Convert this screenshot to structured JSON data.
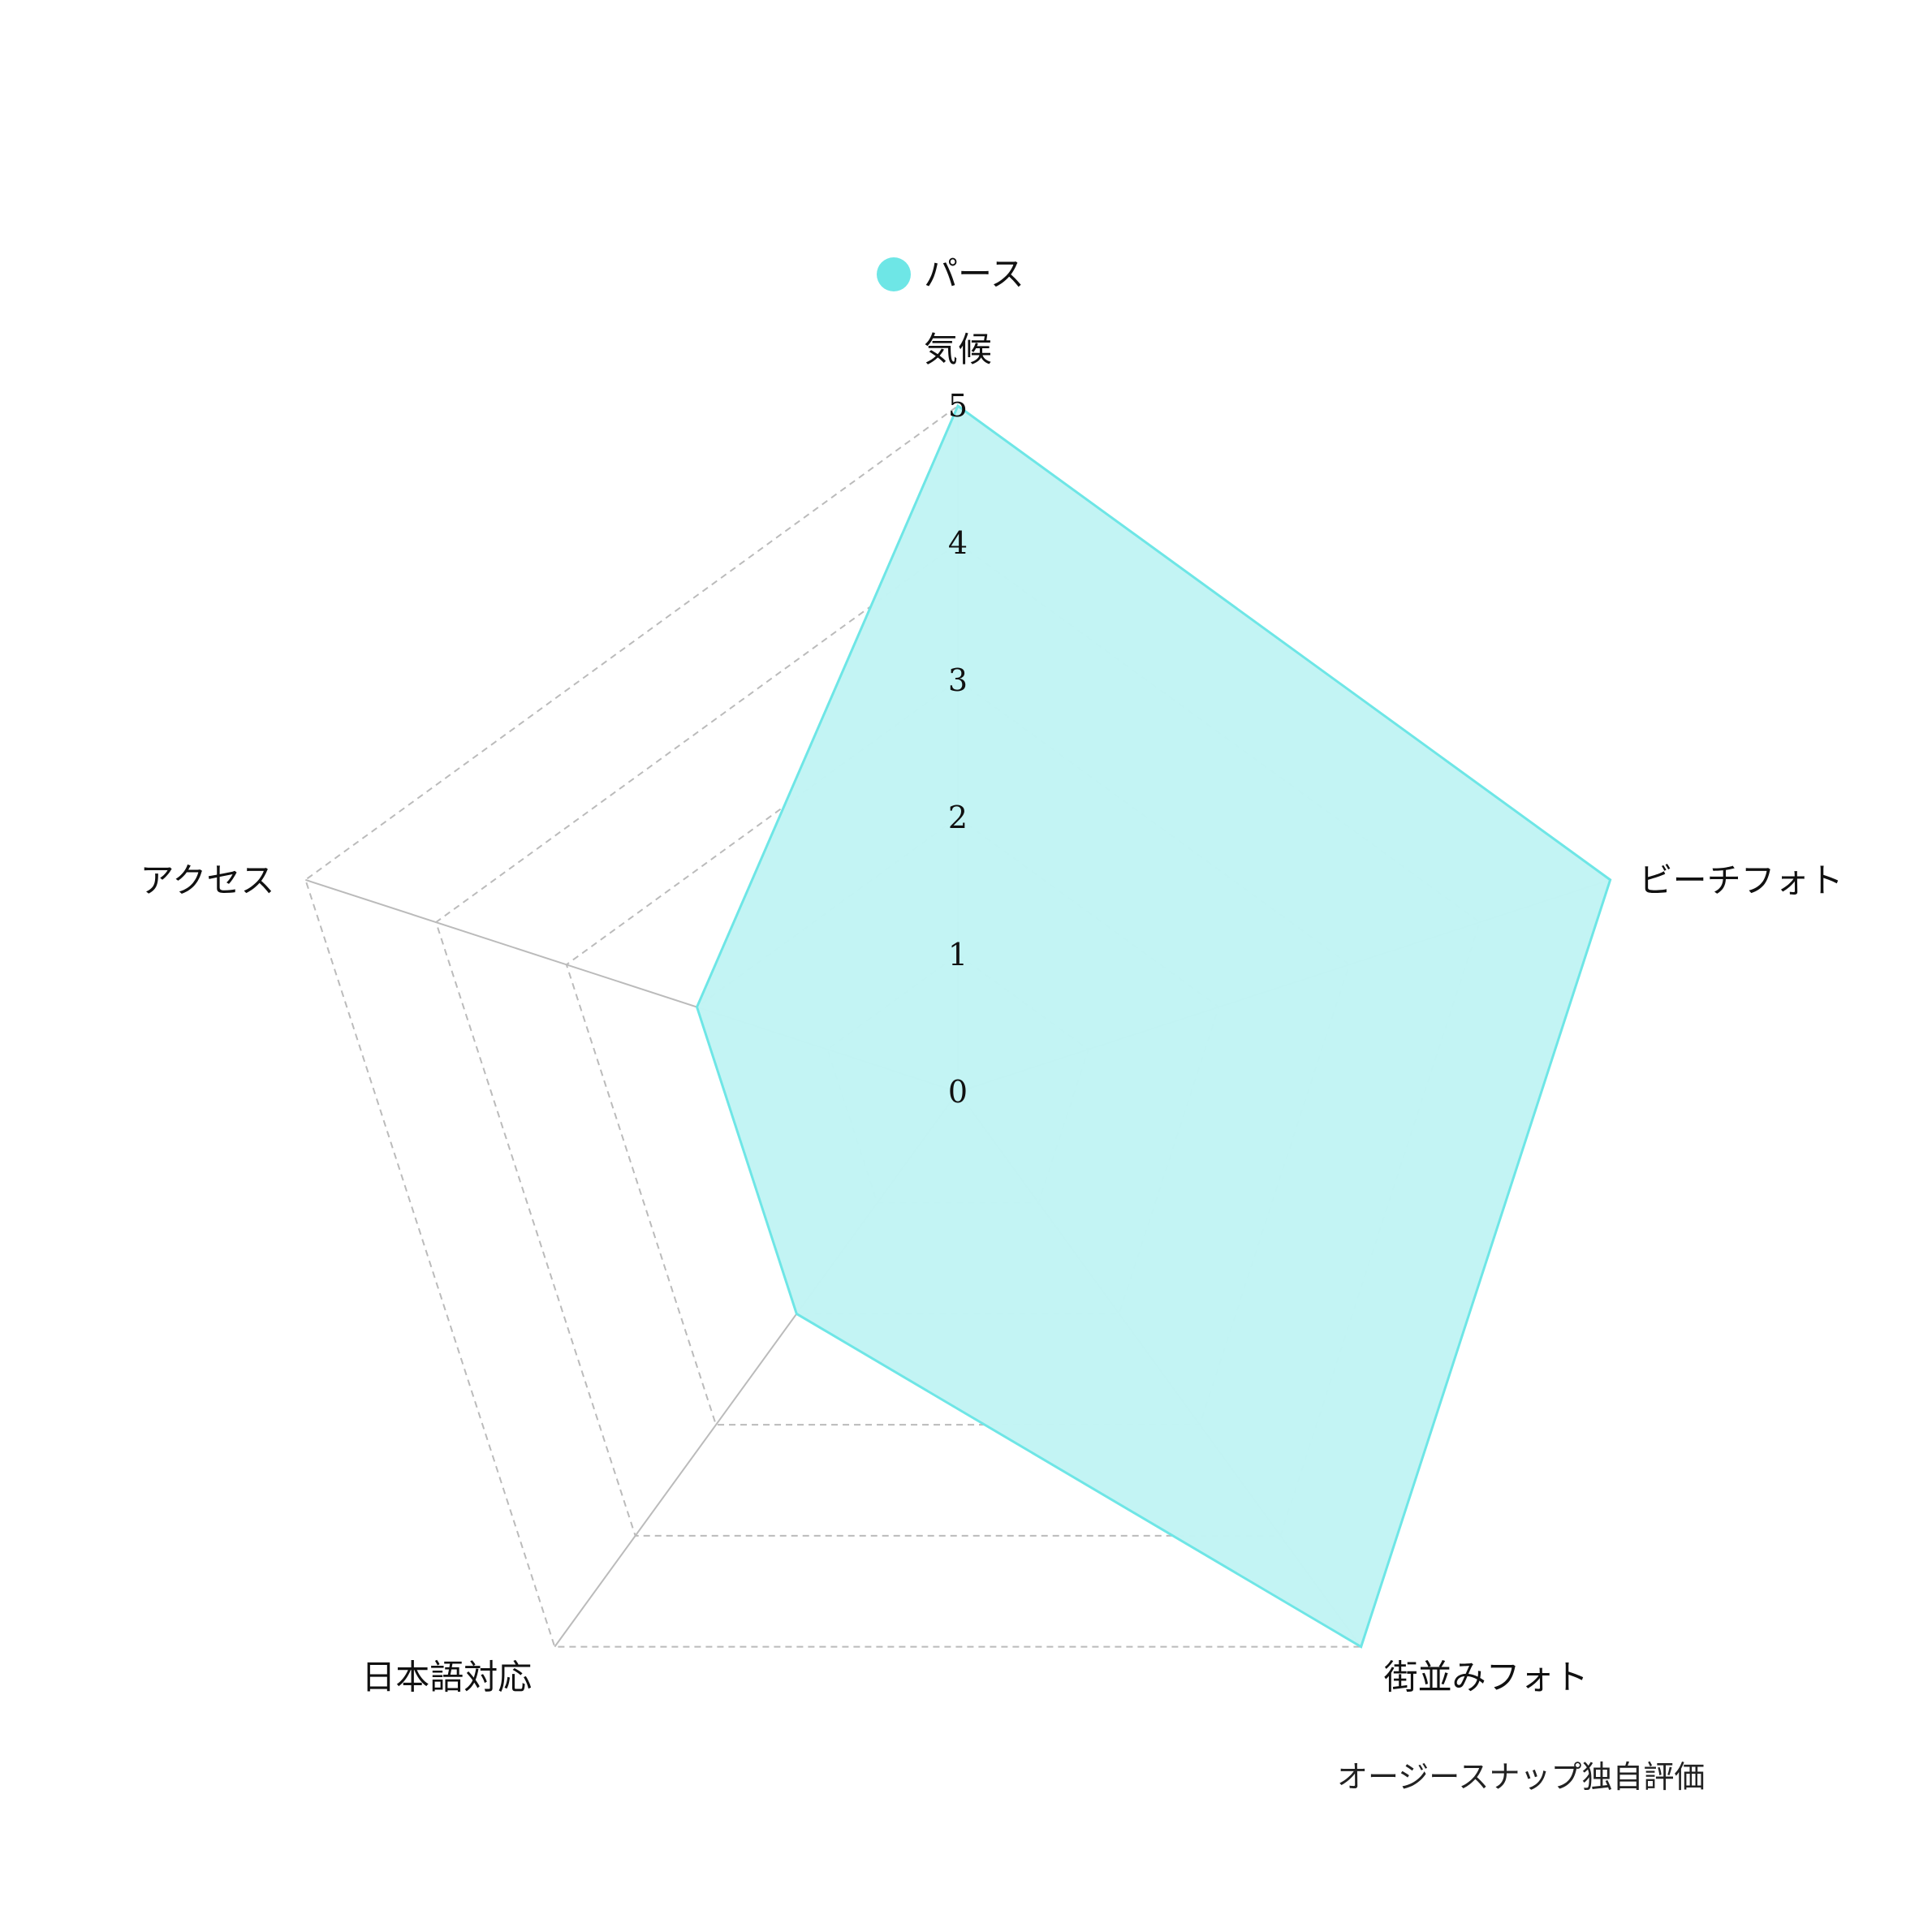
{
  "chart_data": {
    "type": "radar",
    "axes": [
      "気候",
      "ビーチフォト",
      "街並みフォト",
      "日本語対応",
      "アクセス"
    ],
    "range": [
      0,
      5
    ],
    "ticks": [
      "0",
      "1",
      "2",
      "3",
      "4",
      "5"
    ],
    "grid": true,
    "legend_position": "top-center",
    "series": [
      {
        "name": "パース",
        "values": [
          5,
          5,
          5,
          2,
          2
        ],
        "color": "#6ee6e6"
      }
    ],
    "annotation": "オージースナップ独自評価"
  },
  "colors": {
    "fill": "#c2f4f4",
    "stroke": "#6ee6e6",
    "grid": "#bbbbbb",
    "axis": "#bbbbbb"
  }
}
